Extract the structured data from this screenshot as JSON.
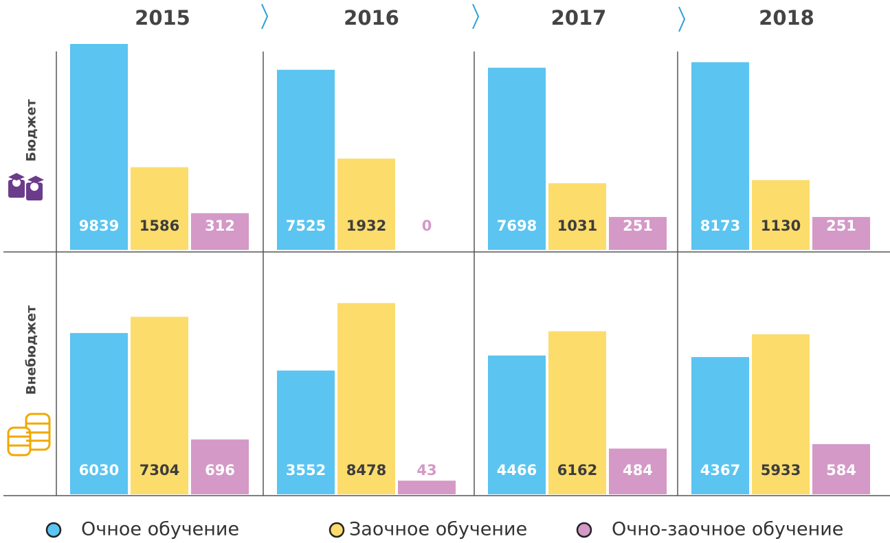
{
  "chart_data": {
    "type": "bar",
    "scale": "sqrt",
    "categories": [
      "2015",
      "2016",
      "2017",
      "2018"
    ],
    "rows": [
      "Бюджет",
      "Внебюджет"
    ],
    "series": [
      {
        "name": "Очное обучение",
        "color": "#5bc4f1",
        "label_color": "#ffffff",
        "values": [
          [
            9839,
            7525,
            7698,
            8173
          ],
          [
            6030,
            3552,
            4466,
            4367
          ]
        ]
      },
      {
        "name": "Заочное обучение",
        "color": "#fcdc6b",
        "label_color": "#3d3d3d",
        "values": [
          [
            1586,
            1932,
            1031,
            1130
          ],
          [
            7304,
            8478,
            6162,
            5933
          ]
        ]
      },
      {
        "name": "Очно-заочное обучение",
        "color": "#d499c6",
        "label_color": "#ffffff",
        "values": [
          [
            312,
            0,
            251,
            251
          ],
          [
            696,
            43,
            484,
            584
          ]
        ]
      }
    ]
  }
}
